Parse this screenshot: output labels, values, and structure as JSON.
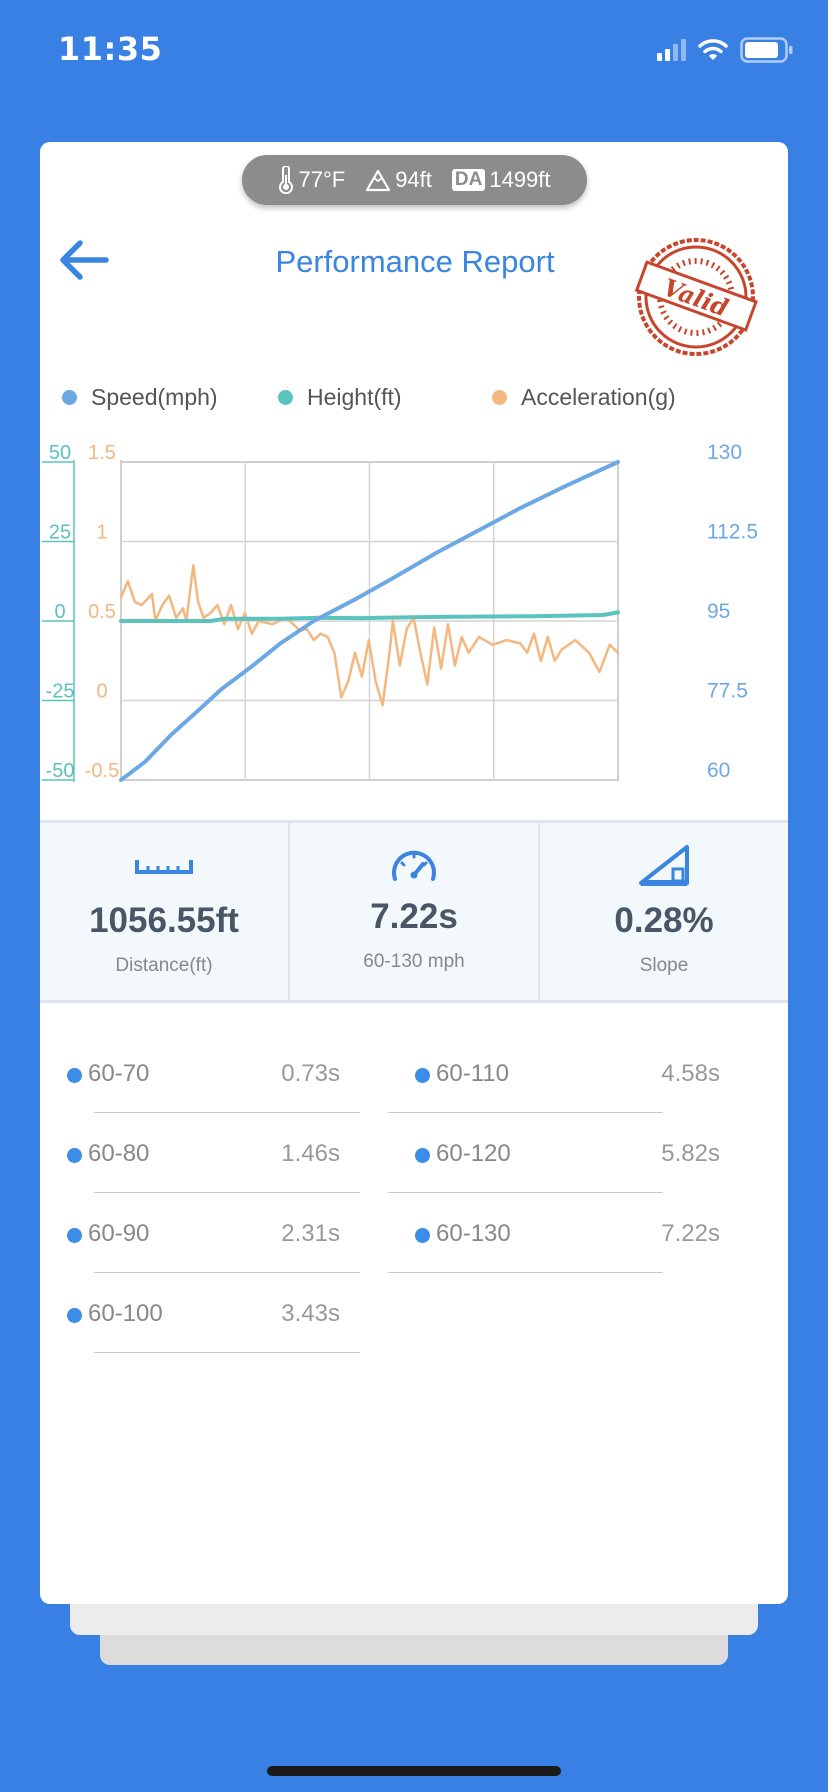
{
  "status_bar": {
    "time": "11:35"
  },
  "conditions": {
    "temperature": "77°F",
    "altitude": "94ft",
    "da_label": "DA",
    "density_altitude": "1499ft"
  },
  "header": {
    "title": "Performance Report",
    "stamp_text": "Valid"
  },
  "legend": [
    {
      "label": "Speed(mph)",
      "color": "#6ea8e4"
    },
    {
      "label": "Height(ft)",
      "color": "#5ac3bd"
    },
    {
      "label": "Acceleration(g)",
      "color": "#f3b77f"
    }
  ],
  "chart_data": {
    "type": "line",
    "x_range": [
      0,
      7.22
    ],
    "grid": true,
    "axes": {
      "height_left": {
        "ticks": [
          "50",
          "25",
          "0",
          "-25",
          "-50"
        ],
        "range": [
          -50,
          50
        ],
        "color": "#5ac3bd"
      },
      "accel_left": {
        "ticks": [
          "1.5",
          "1",
          "0.5",
          "0",
          "-0.5"
        ],
        "range": [
          -0.5,
          1.5
        ],
        "color": "#f3b77f"
      },
      "speed_right": {
        "ticks": [
          "130",
          "112.5",
          "95",
          "77.5",
          "60"
        ],
        "range": [
          60,
          130
        ],
        "color": "#6ea8e4"
      }
    },
    "series": [
      {
        "name": "Speed(mph)",
        "color": "#6ea8e4",
        "points": [
          [
            0,
            60
          ],
          [
            0.35,
            64
          ],
          [
            0.73,
            70
          ],
          [
            1.1,
            75
          ],
          [
            1.46,
            80
          ],
          [
            1.9,
            85
          ],
          [
            2.31,
            90
          ],
          [
            2.8,
            95
          ],
          [
            3.43,
            100
          ],
          [
            3.9,
            104
          ],
          [
            4.58,
            110
          ],
          [
            5.2,
            115
          ],
          [
            5.82,
            120
          ],
          [
            6.5,
            125
          ],
          [
            7.22,
            130
          ]
        ]
      },
      {
        "name": "Height(ft)",
        "color": "#5ac3bd",
        "points": [
          [
            0,
            0
          ],
          [
            1.3,
            0
          ],
          [
            1.5,
            0.7
          ],
          [
            2.3,
            0.7
          ],
          [
            2.9,
            1
          ],
          [
            3.5,
            0.9
          ],
          [
            4.6,
            1.3
          ],
          [
            6.0,
            1.5
          ],
          [
            7.0,
            1.9
          ],
          [
            7.22,
            2.7
          ]
        ]
      },
      {
        "name": "Acceleration(g)",
        "color": "#f3b77f",
        "points": [
          [
            0,
            0.65
          ],
          [
            0.1,
            0.75
          ],
          [
            0.2,
            0.62
          ],
          [
            0.3,
            0.6
          ],
          [
            0.45,
            0.67
          ],
          [
            0.5,
            0.5
          ],
          [
            0.6,
            0.6
          ],
          [
            0.7,
            0.66
          ],
          [
            0.8,
            0.52
          ],
          [
            0.9,
            0.58
          ],
          [
            0.95,
            0.5
          ],
          [
            1.05,
            0.85
          ],
          [
            1.12,
            0.62
          ],
          [
            1.2,
            0.52
          ],
          [
            1.3,
            0.55
          ],
          [
            1.4,
            0.6
          ],
          [
            1.5,
            0.48
          ],
          [
            1.6,
            0.6
          ],
          [
            1.7,
            0.45
          ],
          [
            1.8,
            0.55
          ],
          [
            1.9,
            0.42
          ],
          [
            2.0,
            0.5
          ],
          [
            2.2,
            0.48
          ],
          [
            2.4,
            0.52
          ],
          [
            2.6,
            0.44
          ],
          [
            2.7,
            0.45
          ],
          [
            2.8,
            0.38
          ],
          [
            2.9,
            0.42
          ],
          [
            3.0,
            0.4
          ],
          [
            3.1,
            0.3
          ],
          [
            3.2,
            0.02
          ],
          [
            3.3,
            0.12
          ],
          [
            3.4,
            0.3
          ],
          [
            3.5,
            0.15
          ],
          [
            3.6,
            0.38
          ],
          [
            3.7,
            0.12
          ],
          [
            3.8,
            -0.03
          ],
          [
            3.9,
            0.3
          ],
          [
            3.95,
            0.5
          ],
          [
            4.05,
            0.22
          ],
          [
            4.15,
            0.45
          ],
          [
            4.25,
            0.52
          ],
          [
            4.35,
            0.3
          ],
          [
            4.45,
            0.1
          ],
          [
            4.55,
            0.46
          ],
          [
            4.65,
            0.2
          ],
          [
            4.75,
            0.48
          ],
          [
            4.85,
            0.22
          ],
          [
            4.95,
            0.4
          ],
          [
            5.05,
            0.3
          ],
          [
            5.2,
            0.4
          ],
          [
            5.4,
            0.35
          ],
          [
            5.6,
            0.38
          ],
          [
            5.8,
            0.36
          ],
          [
            5.9,
            0.3
          ],
          [
            6.0,
            0.42
          ],
          [
            6.1,
            0.25
          ],
          [
            6.2,
            0.4
          ],
          [
            6.3,
            0.25
          ],
          [
            6.4,
            0.32
          ],
          [
            6.6,
            0.38
          ],
          [
            6.8,
            0.3
          ],
          [
            6.95,
            0.18
          ],
          [
            7.1,
            0.35
          ],
          [
            7.22,
            0.3
          ]
        ]
      }
    ]
  },
  "stats": [
    {
      "icon": "ruler-icon",
      "value": "1056.55ft",
      "label": "Distance(ft)"
    },
    {
      "icon": "speedometer-icon",
      "value": "7.22s",
      "label": "60-130 mph"
    },
    {
      "icon": "slope-icon",
      "value": "0.28%",
      "label": "Slope"
    }
  ],
  "splits_left": [
    {
      "range": "60-70",
      "time": "0.73s"
    },
    {
      "range": "60-80",
      "time": "1.46s"
    },
    {
      "range": "60-90",
      "time": "2.31s"
    },
    {
      "range": "60-100",
      "time": "3.43s"
    }
  ],
  "splits_right": [
    {
      "range": "60-110",
      "time": "4.58s"
    },
    {
      "range": "60-120",
      "time": "5.82s"
    },
    {
      "range": "60-130",
      "time": "7.22s"
    }
  ]
}
